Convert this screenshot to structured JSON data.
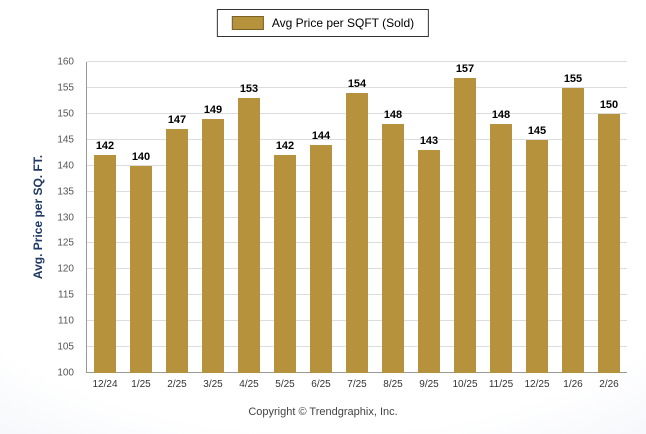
{
  "chart_data": {
    "type": "bar",
    "legend": "Avg Price per SQFT (Sold)",
    "ylabel": "Avg. Price per SQ. FT.",
    "categories": [
      "12/24",
      "1/25",
      "2/25",
      "3/25",
      "4/25",
      "5/25",
      "6/25",
      "7/25",
      "8/25",
      "9/25",
      "10/25",
      "11/25",
      "12/25",
      "1/26",
      "2/26"
    ],
    "values": [
      142,
      140,
      147,
      149,
      153,
      142,
      144,
      154,
      148,
      143,
      157,
      148,
      145,
      155,
      150
    ],
    "ylim": [
      100,
      160
    ],
    "ytick_step": 5,
    "bar_color": "#B6923D",
    "grid": true,
    "legend_position": "top-center"
  },
  "footer": {
    "copyright": "Copyright © Trendgraphix, Inc."
  }
}
